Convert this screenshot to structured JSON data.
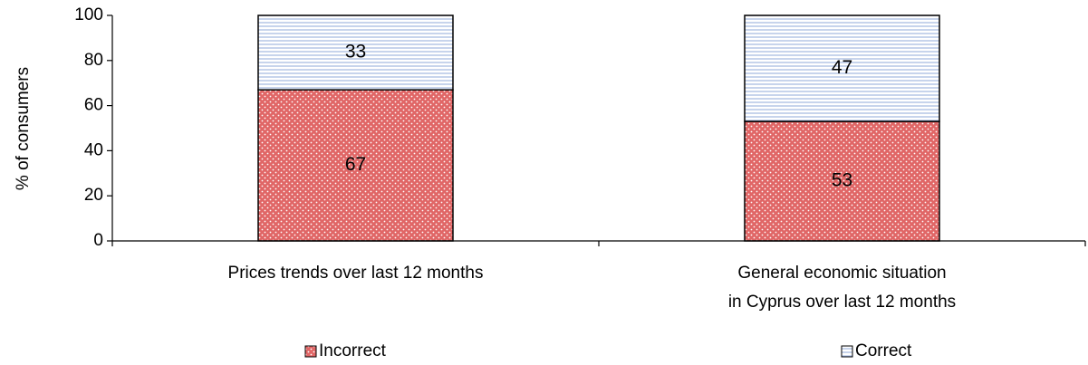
{
  "chart_data": {
    "type": "bar",
    "stacked": true,
    "title": "",
    "xlabel": "",
    "ylabel": "% of consumers",
    "ylim": [
      0,
      100
    ],
    "yticks": [
      0,
      20,
      40,
      60,
      80,
      100
    ],
    "grid": false,
    "legend_position": "bottom",
    "categories": [
      [
        "Prices trends over last 12 months"
      ],
      [
        "General economic situation",
        "in Cyprus over last 12 months"
      ]
    ],
    "series": [
      {
        "name": "Incorrect",
        "values": [
          67,
          53
        ],
        "color": "#e06666",
        "pattern": "dots"
      },
      {
        "name": "Correct",
        "values": [
          33,
          47
        ],
        "color": "#a9bde3",
        "pattern": "horizontal-lines"
      }
    ]
  }
}
